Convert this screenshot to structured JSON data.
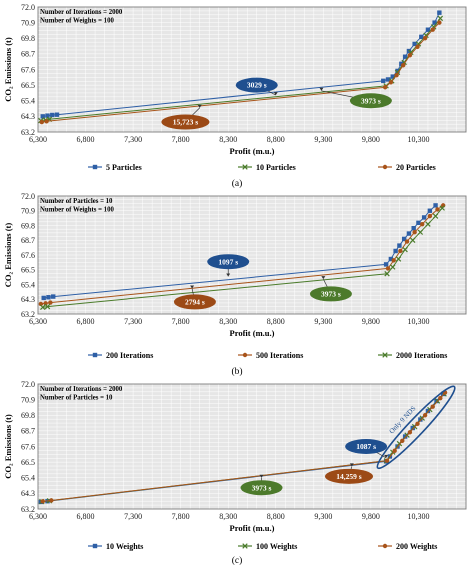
{
  "colors": {
    "blue": "#2e5fa6",
    "green": "#4a7b2a",
    "orange": "#a8541a",
    "plot_bg": "#e6e6e6",
    "grid": "#ffffff",
    "bubble_blue": "#1f4f8f",
    "bubble_green": "#4c7a2b",
    "bubble_orange": "#9c4a16"
  },
  "chart_data": [
    {
      "type": "line",
      "panel": "(a)",
      "info_lines": [
        "Number of Iterations = 2000",
        "Number of Weights = 100"
      ],
      "xlabel": "Profit (m.u.)",
      "ylabel": "CO₂ Emissions (t)",
      "xlim": [
        6300,
        10800
      ],
      "ylim": [
        63.2,
        72.0
      ],
      "x_ticks": [
        6300,
        6800,
        7300,
        7800,
        8300,
        8800,
        9300,
        9800,
        10300
      ],
      "x_tick_labels": [
        "6,300",
        "6,800",
        "7,300",
        "7,800",
        "8,300",
        "8,800",
        "9,300",
        "9,800",
        "10,300"
      ],
      "y_ticks": [
        63.2,
        64.3,
        65.4,
        66.5,
        67.6,
        68.7,
        69.8,
        70.9,
        72.0
      ],
      "y_tick_labels": [
        "63.2",
        "64.3",
        "65.4",
        "66.5",
        "67.6",
        "68.7",
        "69.8",
        "70.9",
        "72.0"
      ],
      "series": [
        {
          "name": "5 Particles",
          "color": "#2e5fa6",
          "marker": "square",
          "points": [
            [
              6350,
              64.3
            ],
            [
              6400,
              64.35
            ],
            [
              6450,
              64.4
            ],
            [
              6500,
              64.42
            ],
            [
              9930,
              66.8
            ],
            [
              9980,
              66.9
            ],
            [
              10030,
              67.1
            ],
            [
              10080,
              67.5
            ],
            [
              10120,
              68.0
            ],
            [
              10160,
              68.5
            ],
            [
              10200,
              68.9
            ],
            [
              10260,
              69.4
            ],
            [
              10330,
              69.9
            ],
            [
              10400,
              70.4
            ],
            [
              10470,
              70.9
            ],
            [
              10520,
              71.6
            ]
          ]
        },
        {
          "name": "10 Particles",
          "color": "#4a7b2a",
          "marker": "x",
          "points": [
            [
              6330,
              64.0
            ],
            [
              6380,
              64.05
            ],
            [
              6420,
              64.1
            ],
            [
              9960,
              66.45
            ],
            [
              10020,
              66.8
            ],
            [
              10080,
              67.4
            ],
            [
              10150,
              68.1
            ],
            [
              10220,
              68.8
            ],
            [
              10300,
              69.4
            ],
            [
              10380,
              70.0
            ],
            [
              10460,
              70.6
            ],
            [
              10530,
              71.2
            ]
          ]
        },
        {
          "name": "20 Particles",
          "color": "#a8541a",
          "marker": "circle",
          "points": [
            [
              6340,
              63.9
            ],
            [
              6390,
              63.95
            ],
            [
              9950,
              66.35
            ],
            [
              10010,
              66.7
            ],
            [
              10070,
              67.2
            ],
            [
              10140,
              67.9
            ],
            [
              10210,
              68.6
            ],
            [
              10290,
              69.2
            ],
            [
              10370,
              69.8
            ],
            [
              10450,
              70.4
            ],
            [
              10520,
              70.9
            ]
          ]
        }
      ],
      "annotations": [
        {
          "text": "3029 s",
          "color": "bubble_blue",
          "at": [
            8600,
            66.5
          ],
          "target": [
            8800,
            65.8
          ]
        },
        {
          "text": "3973 s",
          "color": "bubble_green",
          "at": [
            9800,
            65.4
          ],
          "target": [
            9280,
            66.1
          ]
        },
        {
          "text": "15,723 s",
          "color": "bubble_orange",
          "at": [
            7850,
            63.9
          ],
          "target": [
            8000,
            64.9
          ]
        }
      ]
    },
    {
      "type": "line",
      "panel": "(b)",
      "info_lines": [
        "Number of Particles = 10",
        "Number of Weights = 100"
      ],
      "xlabel": "Profit (m.u.)",
      "ylabel": "CO₂ Emissions (t)",
      "xlim": [
        6300,
        10800
      ],
      "ylim": [
        63.2,
        72.0
      ],
      "x_ticks": [
        6300,
        6800,
        7300,
        7800,
        8300,
        8800,
        9300,
        9800,
        10300
      ],
      "x_tick_labels": [
        "6,300",
        "6,800",
        "7,300",
        "7,800",
        "8,300",
        "8,800",
        "9,300",
        "9,800",
        "10,300"
      ],
      "y_ticks": [
        63.2,
        64.3,
        65.4,
        66.5,
        67.6,
        68.7,
        69.8,
        70.9,
        72.0
      ],
      "y_tick_labels": [
        "63.2",
        "64.3",
        "65.4",
        "66.5",
        "67.6",
        "68.7",
        "69.8",
        "70.9",
        "72.0"
      ],
      "series": [
        {
          "name": "200 Iterations",
          "color": "#2e5fa6",
          "marker": "square",
          "points": [
            [
              6360,
              64.4
            ],
            [
              6410,
              64.45
            ],
            [
              6460,
              64.5
            ],
            [
              9960,
              66.9
            ],
            [
              10010,
              67.3
            ],
            [
              10060,
              67.9
            ],
            [
              10100,
              68.3
            ],
            [
              10150,
              68.8
            ],
            [
              10200,
              69.2
            ],
            [
              10250,
              69.6
            ],
            [
              10300,
              70.0
            ],
            [
              10360,
              70.4
            ],
            [
              10420,
              70.9
            ],
            [
              10480,
              71.3
            ]
          ]
        },
        {
          "name": "500 Iterations",
          "color": "#a8541a",
          "marker": "circle",
          "points": [
            [
              6330,
              63.95
            ],
            [
              6380,
              64.0
            ],
            [
              6430,
              64.05
            ],
            [
              9980,
              66.6
            ],
            [
              10040,
              67.2
            ],
            [
              10110,
              67.9
            ],
            [
              10180,
              68.6
            ],
            [
              10260,
              69.3
            ],
            [
              10340,
              69.9
            ],
            [
              10420,
              70.5
            ],
            [
              10500,
              71.0
            ],
            [
              10560,
              71.3
            ]
          ]
        },
        {
          "name": "2000 Iterations",
          "color": "#4a7b2a",
          "marker": "x",
          "points": [
            [
              6350,
              63.7
            ],
            [
              6400,
              63.75
            ],
            [
              9970,
              66.2
            ],
            [
              10030,
              66.7
            ],
            [
              10090,
              67.3
            ],
            [
              10160,
              68.0
            ],
            [
              10240,
              68.7
            ],
            [
              10320,
              69.3
            ],
            [
              10400,
              69.9
            ],
            [
              10480,
              70.5
            ],
            [
              10550,
              71.1
            ]
          ]
        }
      ],
      "annotations": [
        {
          "text": "1097 s",
          "color": "bubble_blue",
          "at": [
            8300,
            67.1
          ],
          "target": [
            8300,
            66.0
          ]
        },
        {
          "text": "2794 s",
          "color": "bubble_orange",
          "at": [
            7950,
            64.1
          ],
          "target": [
            7920,
            65.1
          ]
        },
        {
          "text": "3973 s",
          "color": "bubble_green",
          "at": [
            9380,
            64.7
          ],
          "target": [
            9300,
            65.8
          ]
        }
      ]
    },
    {
      "type": "line",
      "panel": "(c)",
      "info_lines": [
        "Number of Iterations = 2000",
        "Number of Particles = 10"
      ],
      "xlabel": "Profit (m.u.)",
      "ylabel": "CO₂ Emissions (t)",
      "xlim": [
        6300,
        10800
      ],
      "ylim": [
        63.2,
        72.0
      ],
      "x_ticks": [
        6300,
        6800,
        7300,
        7800,
        8300,
        8800,
        9300,
        9800,
        10300
      ],
      "x_tick_labels": [
        "6,300",
        "6,800",
        "7,300",
        "7,800",
        "8,300",
        "8,800",
        "9,300",
        "9,800",
        "10,300"
      ],
      "y_ticks": [
        63.2,
        64.3,
        65.4,
        66.5,
        67.6,
        68.7,
        69.8,
        70.9,
        72.0
      ],
      "y_tick_labels": [
        "63.2",
        "64.3",
        "65.4",
        "66.5",
        "67.6",
        "68.7",
        "69.8",
        "70.9",
        "72.0"
      ],
      "series": [
        {
          "name": "10 Weights",
          "color": "#2e5fa6",
          "marker": "square",
          "points": [
            [
              6330,
              63.7
            ],
            [
              6400,
              63.75
            ],
            [
              9960,
              66.55
            ],
            [
              10000,
              66.9
            ],
            [
              10080,
              67.6
            ],
            [
              10160,
              68.3
            ],
            [
              10240,
              68.9
            ],
            [
              10320,
              69.5
            ],
            [
              10400,
              70.1
            ],
            [
              10490,
              70.8
            ],
            [
              10560,
              71.3
            ]
          ]
        },
        {
          "name": "100 Weights",
          "color": "#4a7b2a",
          "marker": "x",
          "points": [
            [
              6340,
              63.72
            ],
            [
              6420,
              63.78
            ],
            [
              9965,
              66.6
            ],
            [
              10030,
              67.2
            ],
            [
              10100,
              67.8
            ],
            [
              10180,
              68.4
            ],
            [
              10260,
              69.0
            ],
            [
              10340,
              69.6
            ],
            [
              10420,
              70.2
            ],
            [
              10500,
              70.8
            ],
            [
              10570,
              71.3
            ]
          ]
        },
        {
          "name": "200 Weights",
          "color": "#a8541a",
          "marker": "circle",
          "points": [
            [
              6350,
              63.74
            ],
            [
              6440,
              63.8
            ],
            [
              9970,
              66.6
            ],
            [
              10050,
              67.3
            ],
            [
              10130,
              68.0
            ],
            [
              10210,
              68.6
            ],
            [
              10290,
              69.2
            ],
            [
              10370,
              69.8
            ],
            [
              10450,
              70.4
            ],
            [
              10530,
              71.0
            ],
            [
              10580,
              71.4
            ]
          ]
        }
      ],
      "annotations": [
        {
          "text": "1087 s",
          "color": "bubble_blue",
          "at": [
            9750,
            67.6
          ],
          "target": [
            9960,
            66.8
          ]
        },
        {
          "text": "3973 s",
          "color": "bubble_green",
          "at": [
            8650,
            64.7
          ],
          "target": [
            8650,
            65.4
          ]
        },
        {
          "text": "14,259 s",
          "color": "bubble_orange",
          "at": [
            9570,
            65.5
          ],
          "target": [
            9600,
            66.2
          ]
        }
      ],
      "ellipse_label": "Only 9 NDS",
      "ellipse_around": {
        "x_from": 9930,
        "x_to": 10620,
        "y_from": 66.5,
        "y_to": 71.4
      }
    }
  ]
}
